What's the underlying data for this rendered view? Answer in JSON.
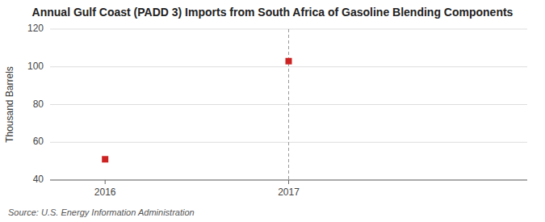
{
  "chart_data": {
    "type": "scatter",
    "title": "Annual Gulf Coast (PADD 3) Imports from South Africa of Gasoline Blending Components",
    "ylabel": "Thousand Barrels",
    "source": "Source: U.S. Energy Information Administration",
    "x": [
      2016,
      2017
    ],
    "values": [
      51,
      103
    ],
    "color": "#cc2222",
    "marker": "square",
    "xlim": [
      2015.7,
      2018.3
    ],
    "ylim": [
      40,
      120
    ],
    "xticks": [
      2016,
      2017
    ],
    "yticks": [
      40,
      60,
      80,
      100,
      120
    ],
    "grid": true,
    "annotations": [
      {
        "type": "vline",
        "x": 2017
      }
    ]
  }
}
